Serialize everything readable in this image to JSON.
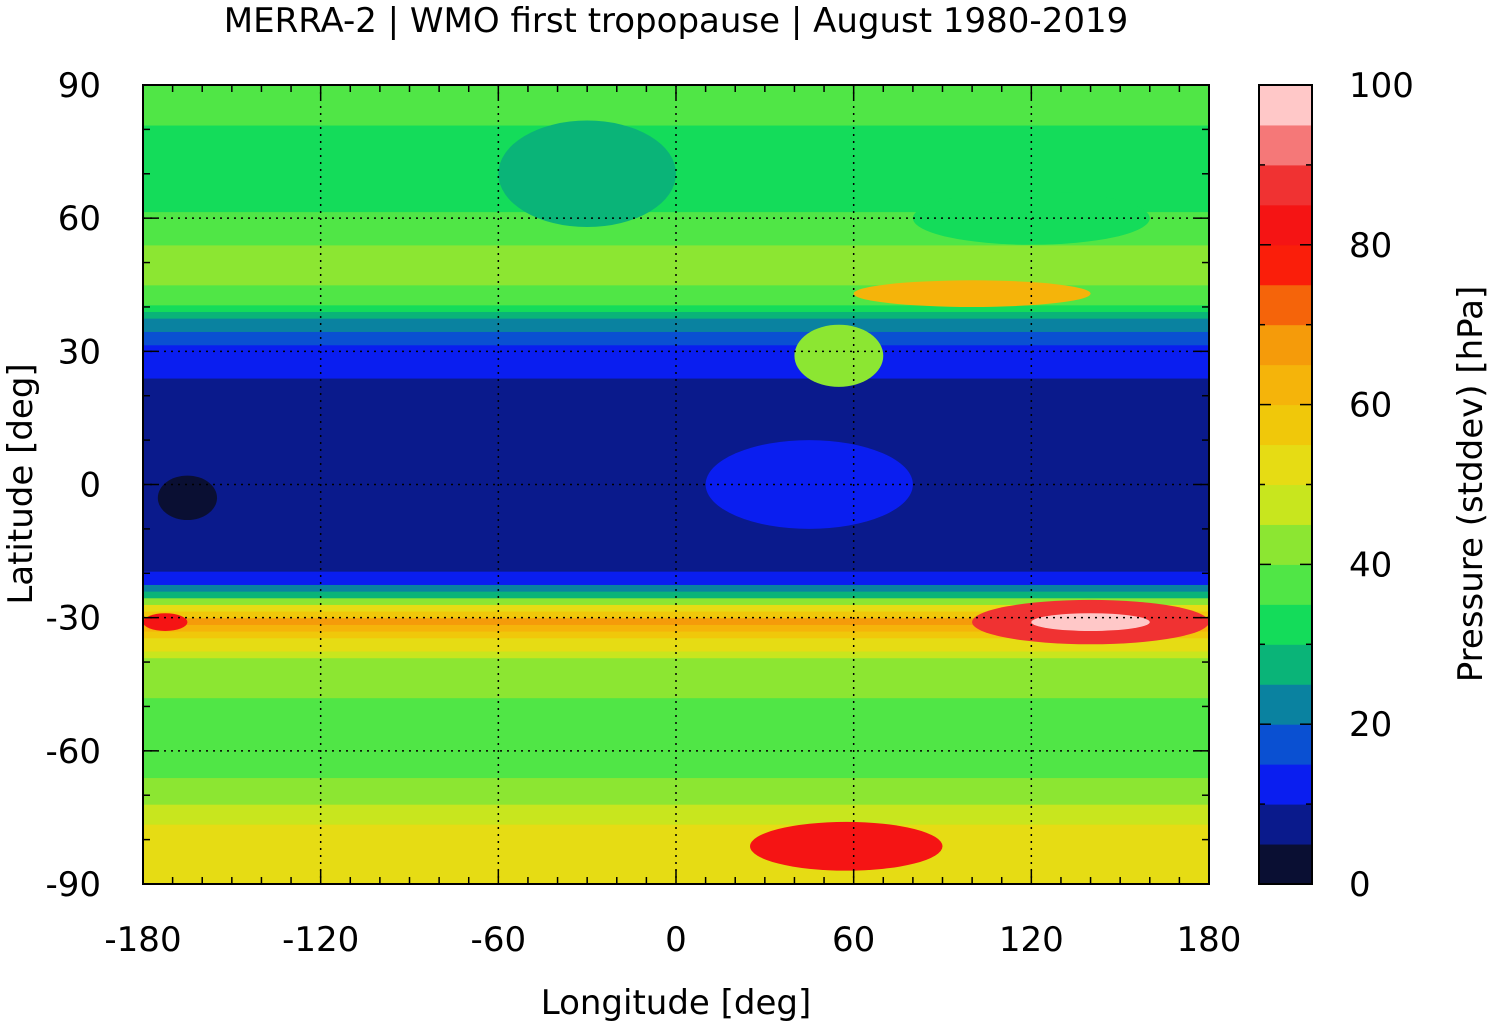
{
  "chart_data": {
    "type": "heatmap",
    "title": "MERRA-2 | WMO first tropopause | August 1980-2019",
    "xlabel": "Longitude [deg]",
    "ylabel": "Latitude [deg]",
    "colorbar_label": "Pressure (stddev) [hPa]",
    "xlim": [
      -180,
      180
    ],
    "ylim": [
      -90,
      90
    ],
    "clim": [
      0,
      100
    ],
    "grid": true,
    "x_ticks": [
      -180,
      -120,
      -60,
      0,
      60,
      120,
      180
    ],
    "x_tick_labels": [
      "-180",
      "-120",
      "-60",
      "0",
      "60",
      "120",
      "180"
    ],
    "y_ticks": [
      -90,
      -60,
      -30,
      0,
      30,
      60,
      90
    ],
    "y_tick_labels": [
      "-90",
      "-60",
      "-30",
      "0",
      "30",
      "60",
      "90"
    ],
    "c_ticks": [
      0,
      20,
      40,
      60,
      80,
      100
    ],
    "c_tick_labels": [
      "0",
      "20",
      "40",
      "60",
      "80",
      "100"
    ],
    "color_levels": [
      {
        "from": 0,
        "to": 5,
        "color": "#0a0f33"
      },
      {
        "from": 5,
        "to": 10,
        "color": "#0a1a8c"
      },
      {
        "from": 10,
        "to": 15,
        "color": "#0a1ef0"
      },
      {
        "from": 15,
        "to": 20,
        "color": "#0a50d2"
      },
      {
        "from": 20,
        "to": 25,
        "color": "#0a82a0"
      },
      {
        "from": 25,
        "to": 30,
        "color": "#0ab478"
      },
      {
        "from": 30,
        "to": 35,
        "color": "#14dc5a"
      },
      {
        "from": 35,
        "to": 40,
        "color": "#50e646"
      },
      {
        "from": 40,
        "to": 45,
        "color": "#8ce632"
      },
      {
        "from": 45,
        "to": 50,
        "color": "#c8e61e"
      },
      {
        "from": 50,
        "to": 55,
        "color": "#e6dc14"
      },
      {
        "from": 55,
        "to": 60,
        "color": "#f0c80a"
      },
      {
        "from": 60,
        "to": 65,
        "color": "#f5b40a"
      },
      {
        "from": 65,
        "to": 70,
        "color": "#f59b0a"
      },
      {
        "from": 70,
        "to": 75,
        "color": "#f5640a"
      },
      {
        "from": 75,
        "to": 80,
        "color": "#fa1e0a"
      },
      {
        "from": 80,
        "to": 85,
        "color": "#f51414"
      },
      {
        "from": 85,
        "to": 90,
        "color": "#f03232"
      },
      {
        "from": 90,
        "to": 95,
        "color": "#f57878"
      },
      {
        "from": 95,
        "to": 100,
        "color": "#ffc8c8"
      }
    ],
    "zonal_profile": [
      {
        "lat": -90,
        "value": 54
      },
      {
        "lat": -84,
        "value": 55
      },
      {
        "lat": -78,
        "value": 52
      },
      {
        "lat": -72,
        "value": 44
      },
      {
        "lat": -66,
        "value": 40
      },
      {
        "lat": -60,
        "value": 38
      },
      {
        "lat": -54,
        "value": 39
      },
      {
        "lat": -48,
        "value": 40
      },
      {
        "lat": -42,
        "value": 42
      },
      {
        "lat": -38,
        "value": 47
      },
      {
        "lat": -34,
        "value": 58
      },
      {
        "lat": -31,
        "value": 66
      },
      {
        "lat": -28,
        "value": 55
      },
      {
        "lat": -25,
        "value": 30
      },
      {
        "lat": -22,
        "value": 13
      },
      {
        "lat": -18,
        "value": 9
      },
      {
        "lat": -10,
        "value": 8
      },
      {
        "lat": 0,
        "value": 7
      },
      {
        "lat": 10,
        "value": 7
      },
      {
        "lat": 18,
        "value": 8
      },
      {
        "lat": 24,
        "value": 10
      },
      {
        "lat": 30,
        "value": 13
      },
      {
        "lat": 34,
        "value": 18
      },
      {
        "lat": 38,
        "value": 27
      },
      {
        "lat": 42,
        "value": 38
      },
      {
        "lat": 48,
        "value": 42
      },
      {
        "lat": 54,
        "value": 40
      },
      {
        "lat": 60,
        "value": 36
      },
      {
        "lat": 66,
        "value": 32
      },
      {
        "lat": 72,
        "value": 32
      },
      {
        "lat": 78,
        "value": 34
      },
      {
        "lat": 84,
        "value": 36
      },
      {
        "lat": 90,
        "value": 36
      }
    ],
    "features": [
      {
        "lon": [
          100,
          180
        ],
        "lat": [
          -36,
          -26
        ],
        "value": 85
      },
      {
        "lon": [
          120,
          160
        ],
        "lat": [
          -33,
          -29
        ],
        "value": 95
      },
      {
        "lon": [
          -180,
          -165
        ],
        "lat": [
          -33,
          -29
        ],
        "value": 82
      },
      {
        "lon": [
          25,
          90
        ],
        "lat": [
          -87,
          -76
        ],
        "value": 82
      },
      {
        "lon": [
          -175,
          -155
        ],
        "lat": [
          -8,
          2
        ],
        "value": 3
      },
      {
        "lon": [
          40,
          70
        ],
        "lat": [
          22,
          36
        ],
        "value": 40
      },
      {
        "lon": [
          10,
          80
        ],
        "lat": [
          -10,
          10
        ],
        "value": 12
      },
      {
        "lon": [
          -60,
          0
        ],
        "lat": [
          58,
          82
        ],
        "value": 28
      },
      {
        "lon": [
          80,
          160
        ],
        "lat": [
          54,
          66
        ],
        "value": 30
      },
      {
        "lon": [
          60,
          140
        ],
        "lat": [
          40,
          46
        ],
        "value": 60
      }
    ]
  }
}
